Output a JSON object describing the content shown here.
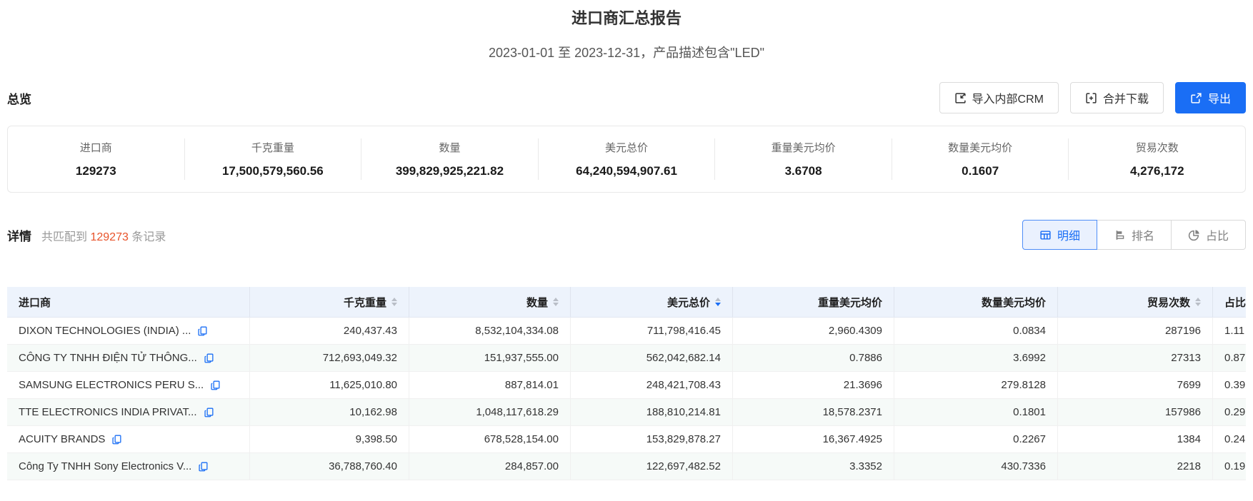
{
  "colors": {
    "primary_blue": "#1a6ef5",
    "accent_orange": "#e8532a",
    "table_header_bg": "#edf3fc",
    "stripe_bg": "#f6faf8"
  },
  "header": {
    "title": "进口商汇总报告",
    "subtitle": "2023-01-01 至 2023-12-31，产品描述包含\"LED\""
  },
  "overview": {
    "section_label": "总览",
    "buttons": [
      {
        "label": "导入内部CRM",
        "icon": "import-icon"
      },
      {
        "label": "合并下载",
        "icon": "merge-download-icon"
      },
      {
        "label": "导出",
        "icon": "export-icon"
      }
    ],
    "stats": [
      {
        "label": "进口商",
        "value": "129273"
      },
      {
        "label": "千克重量",
        "value": "17,500,579,560.56"
      },
      {
        "label": "数量",
        "value": "399,829,925,221.82"
      },
      {
        "label": "美元总价",
        "value": "64,240,594,907.61"
      },
      {
        "label": "重量美元均价",
        "value": "3.6708"
      },
      {
        "label": "数量美元均价",
        "value": "0.1607"
      },
      {
        "label": "贸易次数",
        "value": "4,276,172"
      }
    ]
  },
  "details": {
    "section_label": "详情",
    "match_prefix": "共匹配到",
    "match_count": "129273",
    "match_suffix": "条记录",
    "tabs": [
      {
        "label": "明细",
        "icon": "table-icon",
        "active": true
      },
      {
        "label": "排名",
        "icon": "ranking-icon",
        "active": false
      },
      {
        "label": "占比",
        "icon": "pie-icon",
        "active": false
      }
    ]
  },
  "table": {
    "columns": [
      {
        "label": "进口商",
        "sortable": false
      },
      {
        "label": "千克重量",
        "sortable": true
      },
      {
        "label": "数量",
        "sortable": true
      },
      {
        "label": "美元总价",
        "sortable": true,
        "sort": "desc"
      },
      {
        "label": "重量美元均价",
        "sortable": false
      },
      {
        "label": "数量美元均价",
        "sortable": false
      },
      {
        "label": "贸易次数",
        "sortable": true
      },
      {
        "label": "占比",
        "sortable": false
      }
    ],
    "row_keys": [
      "importer",
      "weight_kg",
      "quantity",
      "usd_total",
      "usd_per_weight",
      "usd_per_qty",
      "trades",
      "share"
    ],
    "rows": [
      {
        "importer": "DIXON TECHNOLOGIES (INDIA) ...",
        "weight_kg": "240,437.43",
        "quantity": "8,532,104,334.08",
        "usd_total": "711,798,416.45",
        "usd_per_weight": "2,960.4309",
        "usd_per_qty": "0.0834",
        "trades": "287196",
        "share": "1.11"
      },
      {
        "importer": "CÔNG TY TNHH ĐIỆN TỬ THÔNG...",
        "weight_kg": "712,693,049.32",
        "quantity": "151,937,555.00",
        "usd_total": "562,042,682.14",
        "usd_per_weight": "0.7886",
        "usd_per_qty": "3.6992",
        "trades": "27313",
        "share": "0.87"
      },
      {
        "importer": "SAMSUNG ELECTRONICS PERU S...",
        "weight_kg": "11,625,010.80",
        "quantity": "887,814.01",
        "usd_total": "248,421,708.43",
        "usd_per_weight": "21.3696",
        "usd_per_qty": "279.8128",
        "trades": "7699",
        "share": "0.39"
      },
      {
        "importer": "TTE ELECTRONICS INDIA PRIVAT...",
        "weight_kg": "10,162.98",
        "quantity": "1,048,117,618.29",
        "usd_total": "188,810,214.81",
        "usd_per_weight": "18,578.2371",
        "usd_per_qty": "0.1801",
        "trades": "157986",
        "share": "0.29"
      },
      {
        "importer": "ACUITY BRANDS",
        "weight_kg": "9,398.50",
        "quantity": "678,528,154.00",
        "usd_total": "153,829,878.27",
        "usd_per_weight": "16,367.4925",
        "usd_per_qty": "0.2267",
        "trades": "1384",
        "share": "0.24"
      },
      {
        "importer": "Công Ty TNHH Sony Electronics V...",
        "weight_kg": "36,788,760.40",
        "quantity": "284,857.00",
        "usd_total": "122,697,482.52",
        "usd_per_weight": "3.3352",
        "usd_per_qty": "430.7336",
        "trades": "2218",
        "share": "0.19"
      }
    ]
  }
}
